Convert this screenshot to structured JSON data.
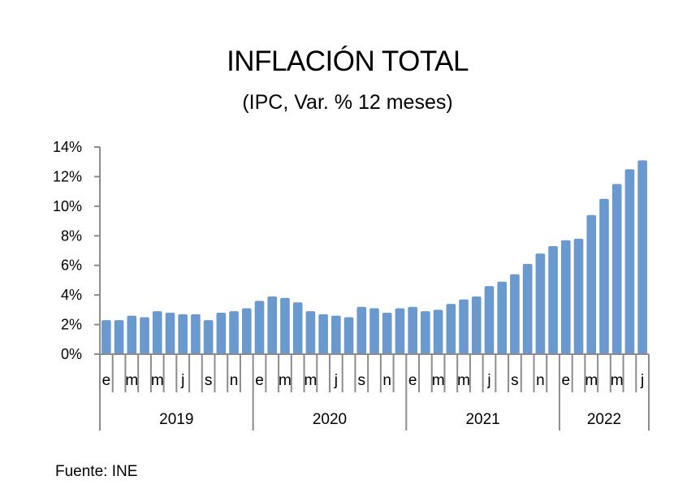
{
  "chart_data": {
    "type": "bar",
    "title": "INFLACIÓN TOTAL",
    "subtitle": "(IPC, Var. % 12 meses)",
    "xlabel": "",
    "ylabel": "",
    "ylim": [
      0,
      14
    ],
    "y_ticks": [
      0,
      2,
      4,
      6,
      8,
      10,
      12,
      14
    ],
    "y_tick_labels": [
      "0%",
      "2%",
      "4%",
      "6%",
      "8%",
      "10%",
      "12%",
      "14%"
    ],
    "grid": false,
    "legend": "none",
    "bar_color": "#6A99D0",
    "axis_color": "#8C8C8C",
    "years": [
      {
        "label": "2019",
        "months": 12
      },
      {
        "label": "2020",
        "months": 12
      },
      {
        "label": "2021",
        "months": 12
      },
      {
        "label": "2022",
        "months": 7
      }
    ],
    "month_tick_labels": [
      "e",
      "",
      "m",
      "",
      "m",
      "",
      "j",
      "",
      "s",
      "",
      "n",
      ""
    ],
    "categories": [
      "2019-01",
      "2019-02",
      "2019-03",
      "2019-04",
      "2019-05",
      "2019-06",
      "2019-07",
      "2019-08",
      "2019-09",
      "2019-10",
      "2019-11",
      "2019-12",
      "2020-01",
      "2020-02",
      "2020-03",
      "2020-04",
      "2020-05",
      "2020-06",
      "2020-07",
      "2020-08",
      "2020-09",
      "2020-10",
      "2020-11",
      "2020-12",
      "2021-01",
      "2021-02",
      "2021-03",
      "2021-04",
      "2021-05",
      "2021-06",
      "2021-07",
      "2021-08",
      "2021-09",
      "2021-10",
      "2021-11",
      "2021-12",
      "2022-01",
      "2022-02",
      "2022-03",
      "2022-04",
      "2022-05",
      "2022-06",
      "2022-07"
    ],
    "values": [
      2.3,
      2.3,
      2.6,
      2.5,
      2.9,
      2.8,
      2.7,
      2.7,
      2.3,
      2.8,
      2.9,
      3.1,
      3.6,
      3.9,
      3.8,
      3.5,
      2.9,
      2.7,
      2.6,
      2.5,
      3.2,
      3.1,
      2.8,
      3.1,
      3.2,
      2.9,
      3.0,
      3.4,
      3.7,
      3.9,
      4.6,
      4.9,
      5.4,
      6.1,
      6.8,
      7.3,
      7.7,
      7.8,
      9.4,
      10.5,
      11.5,
      12.5,
      13.1
    ]
  },
  "source": "Fuente: INE"
}
